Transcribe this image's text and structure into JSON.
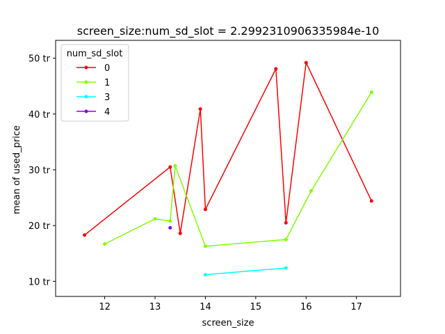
{
  "chart_data": {
    "type": "line",
    "title": "screen_size:num_sd_slot = 2.2992310906335984e-10",
    "xlabel": "screen_size",
    "ylabel": "mean of used_price",
    "xlim": [
      11.025,
      17.875
    ],
    "ylim": [
      7.3,
      53.2
    ],
    "xticks": [
      12,
      13,
      14,
      15,
      16,
      17
    ],
    "xtick_labels": [
      "12",
      "13",
      "14",
      "15",
      "16",
      "17"
    ],
    "yticks": [
      10,
      20,
      30,
      40,
      50
    ],
    "ytick_labels": [
      "10 tr",
      "20 tr",
      "30 tr",
      "40 tr",
      "50 tr"
    ],
    "grid": false,
    "legend": {
      "title": "num_sd_slot",
      "placement": "top-left"
    },
    "series": [
      {
        "name": "0",
        "color": "#ff0000",
        "points": [
          [
            11.6,
            18.3
          ],
          [
            13.3,
            30.5
          ],
          [
            13.5,
            18.6
          ],
          [
            13.9,
            40.9
          ],
          [
            14.0,
            22.9
          ],
          [
            15.4,
            48.1
          ],
          [
            15.6,
            20.5
          ],
          [
            16.0,
            49.2
          ],
          [
            17.3,
            24.4
          ]
        ]
      },
      {
        "name": "1",
        "color": "#80ff00",
        "points": [
          [
            12.0,
            16.7
          ],
          [
            13.0,
            21.2
          ],
          [
            13.3,
            20.8
          ],
          [
            13.4,
            30.7
          ],
          [
            14.0,
            16.3
          ],
          [
            15.6,
            17.5
          ],
          [
            16.1,
            26.2
          ],
          [
            17.3,
            43.9
          ]
        ]
      },
      {
        "name": "3",
        "color": "#00ffff",
        "points": [
          [
            14.0,
            11.2
          ],
          [
            15.6,
            12.4
          ]
        ]
      },
      {
        "name": "4",
        "color": "#8000ff",
        "points": [
          [
            13.3,
            19.6
          ]
        ]
      }
    ]
  }
}
